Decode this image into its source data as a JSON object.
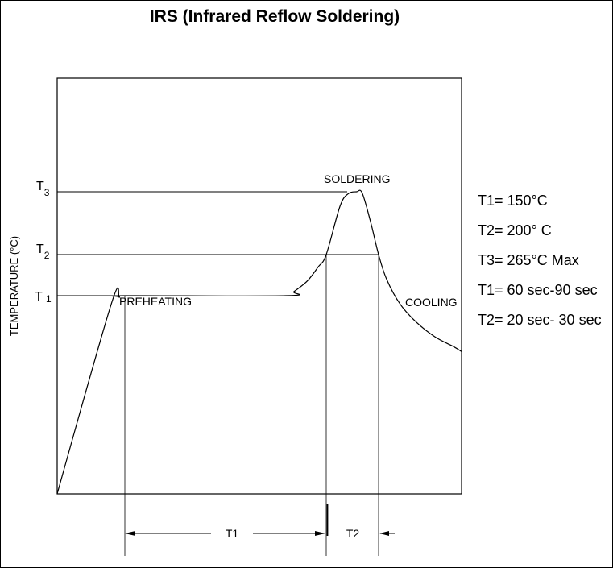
{
  "chart_data": {
    "type": "line",
    "title": "IRS (Infrared Reflow Soldering)",
    "ylabel": "TEMPERATURE (°C)",
    "y_levels": [
      {
        "letter": "T",
        "sub": "3",
        "value": 265
      },
      {
        "letter": "T",
        "sub": "2",
        "value": 200
      },
      {
        "letter": "T ",
        "sub": "1",
        "value": 150
      }
    ],
    "phases": [
      "PREHEATING",
      "SOLDERING",
      "COOLING"
    ],
    "durations": [
      {
        "label": "T1",
        "start": 25,
        "end": 100
      },
      {
        "label": "T2",
        "start": 100,
        "end": 119
      }
    ],
    "profile": {
      "x": [
        0,
        20,
        23,
        25,
        85,
        88,
        93,
        97,
        100,
        105,
        108,
        111,
        113,
        116,
        119,
        122,
        127,
        133,
        140,
        147,
        150
      ],
      "y": [
        25,
        140,
        148,
        150,
        150,
        155,
        168,
        185,
        200,
        250,
        263,
        265,
        264,
        235,
        200,
        170,
        140,
        118,
        100,
        88,
        82
      ]
    },
    "legend": [
      "T1= 150°C",
      "T2= 200° C",
      "T3= 265°C Max",
      "T1= 60 sec-90 sec",
      "T2= 20 sec- 30 sec"
    ]
  }
}
